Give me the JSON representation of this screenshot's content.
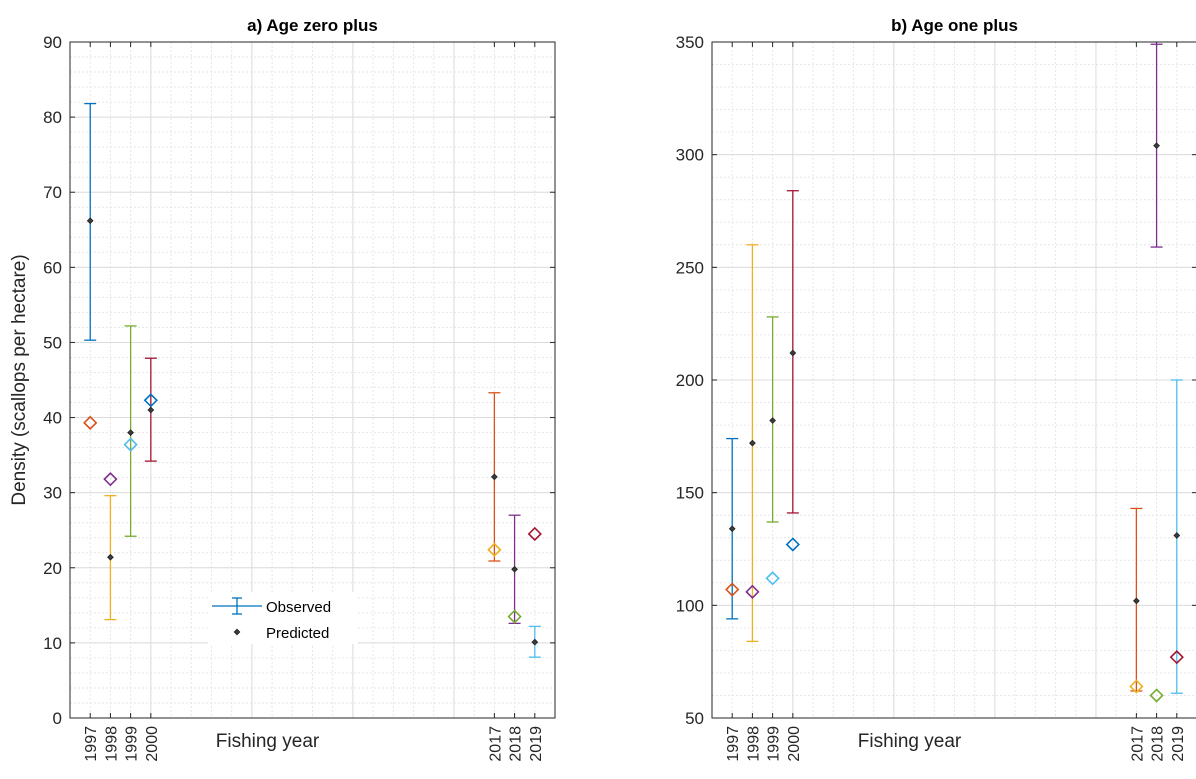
{
  "figure": {
    "ylabel": "Density (scallops per hectare)"
  },
  "chart_data": [
    {
      "type": "errorbar",
      "title": "a) Age zero plus",
      "xlabel": "Fishing year",
      "ylabel": "Density (scallops per hectare)",
      "ylim": [
        0,
        90
      ],
      "yticks": [
        0,
        10,
        20,
        30,
        40,
        50,
        60,
        70,
        80,
        90
      ],
      "x_range": [
        1996,
        2020
      ],
      "xtick_labels": [
        "1997",
        "1998",
        "1999",
        "2000",
        "2017",
        "2018",
        "2019"
      ],
      "legend": {
        "position": "center",
        "observed": "Observed",
        "predicted": "Predicted"
      },
      "grid": "major-and-minor",
      "points": [
        {
          "year": "1997",
          "observed": 66.2,
          "low": 50.3,
          "high": 81.8,
          "predicted": 39.3,
          "bar_color": "#0072BD",
          "pred_color": "#D95319"
        },
        {
          "year": "1998",
          "observed": 21.4,
          "low": 13.1,
          "high": 29.6,
          "predicted": 31.8,
          "bar_color": "#EDB120",
          "pred_color": "#7E2F8E"
        },
        {
          "year": "1999",
          "observed": 38.0,
          "low": 24.2,
          "high": 52.2,
          "predicted": 36.4,
          "bar_color": "#77AC30",
          "pred_color": "#4DBEEE"
        },
        {
          "year": "2000",
          "observed": 41.0,
          "low": 34.2,
          "high": 47.9,
          "predicted": 42.3,
          "bar_color": "#A2142F",
          "pred_color": "#0072BD"
        },
        {
          "year": "2017",
          "observed": 32.1,
          "low": 20.9,
          "high": 43.3,
          "predicted": 22.4,
          "bar_color": "#D95319",
          "pred_color": "#EDB120"
        },
        {
          "year": "2018",
          "observed": 19.8,
          "low": 12.6,
          "high": 27.0,
          "predicted": 13.5,
          "bar_color": "#7E2F8E",
          "pred_color": "#77AC30"
        },
        {
          "year": "2019",
          "observed": 10.1,
          "low": 8.1,
          "high": 12.2,
          "predicted": 24.5,
          "bar_color": "#4DBEEE",
          "pred_color": "#A2142F"
        }
      ]
    },
    {
      "type": "errorbar",
      "title": "b) Age one plus",
      "xlabel": "Fishing year",
      "ylabel": "",
      "ylim": [
        50,
        350
      ],
      "yticks": [
        50,
        100,
        150,
        200,
        250,
        300,
        350
      ],
      "x_range": [
        1996,
        2020
      ],
      "xtick_labels": [
        "1997",
        "1998",
        "1999",
        "2000",
        "2017",
        "2018",
        "2019"
      ],
      "grid": "major-and-minor",
      "points": [
        {
          "year": "1997",
          "observed": 134,
          "low": 94,
          "high": 174,
          "predicted": 107,
          "bar_color": "#0072BD",
          "pred_color": "#D95319"
        },
        {
          "year": "1998",
          "observed": 172,
          "low": 84,
          "high": 260,
          "predicted": 106,
          "bar_color": "#EDB120",
          "pred_color": "#7E2F8E"
        },
        {
          "year": "1999",
          "observed": 182,
          "low": 137,
          "high": 228,
          "predicted": 112,
          "bar_color": "#77AC30",
          "pred_color": "#4DBEEE"
        },
        {
          "year": "2000",
          "observed": 212,
          "low": 141,
          "high": 284,
          "predicted": 127,
          "bar_color": "#A2142F",
          "pred_color": "#0072BD"
        },
        {
          "year": "2017",
          "observed": 102,
          "low": 62,
          "high": 143,
          "predicted": 64,
          "bar_color": "#D95319",
          "pred_color": "#EDB120"
        },
        {
          "year": "2018",
          "observed": 304,
          "low": 259,
          "high": 349,
          "predicted": 60,
          "bar_color": "#7E2F8E",
          "pred_color": "#77AC30"
        },
        {
          "year": "2019",
          "observed": 131,
          "low": 61,
          "high": 200,
          "predicted": 77,
          "bar_color": "#4DBEEE",
          "pred_color": "#A2142F"
        }
      ]
    }
  ]
}
